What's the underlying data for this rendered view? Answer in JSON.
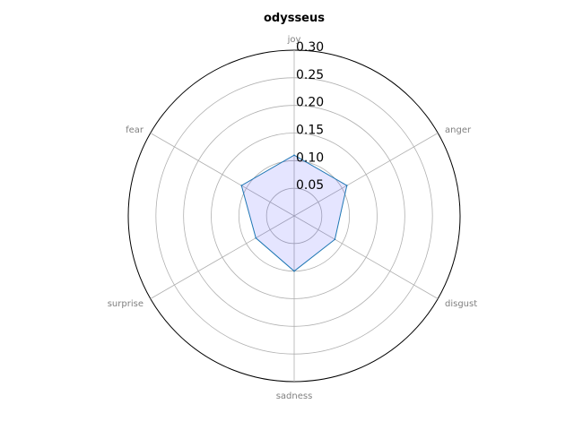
{
  "chart_data": {
    "type": "radar",
    "title": "odysseus",
    "axes": [
      "joy",
      "anger",
      "disgust",
      "sadness",
      "surprise",
      "fear"
    ],
    "series": [
      {
        "values": [
          0.11,
          0.11,
          0.085,
          0.1,
          0.08,
          0.11
        ],
        "line_color": "#1f77b4",
        "fill_color": "#0000ff",
        "fill_opacity": 0.1
      }
    ],
    "rlim": [
      0,
      0.3
    ],
    "rticks": [
      0.05,
      0.1,
      0.15,
      0.2,
      0.25,
      0.3
    ],
    "rtick_labels": [
      "0.05",
      "0.10",
      "0.15",
      "0.20",
      "0.25",
      "0.30"
    ],
    "grid": true
  }
}
